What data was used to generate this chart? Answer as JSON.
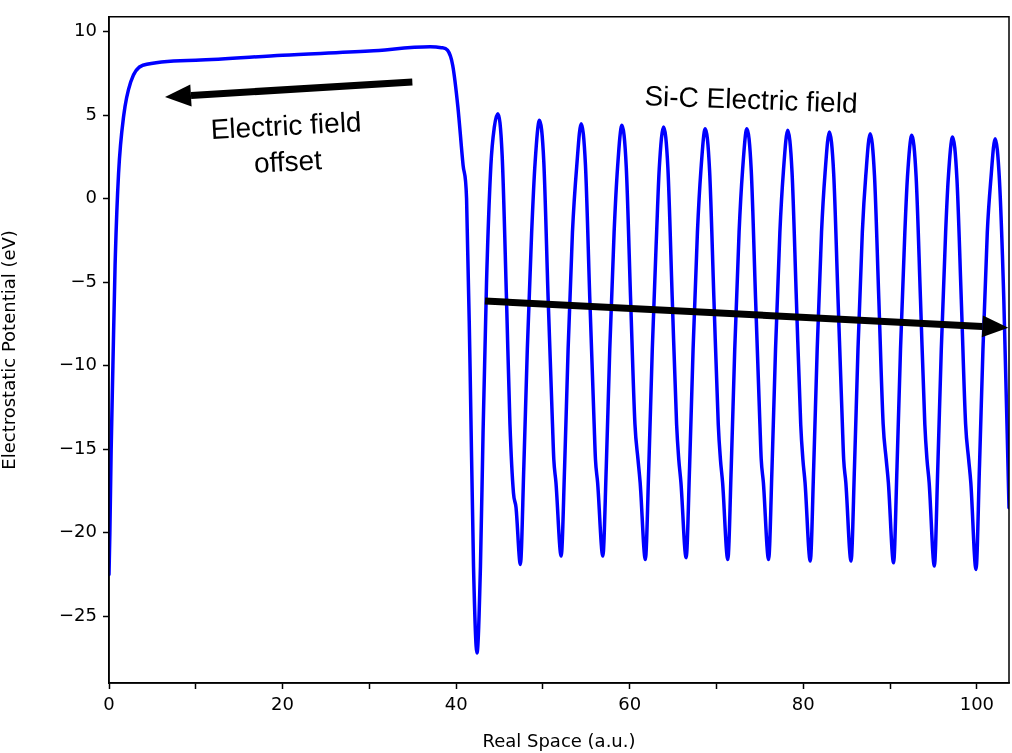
{
  "chart_data": {
    "type": "line",
    "xlabel": "Real Space (a.u.)",
    "ylabel": "Electrostatic Potential (eV)",
    "annotations": [
      "Electric field\noffset",
      "Si-C Electric field"
    ],
    "xlim": [
      0,
      103.7
    ],
    "ylim": [
      -29,
      10.9
    ],
    "xticks": [
      0,
      {
        "value": 10,
        "label": null
      },
      20,
      {
        "value": 30,
        "label": null
      },
      40,
      {
        "value": 50,
        "label": null
      },
      60,
      {
        "value": 70,
        "label": null
      },
      80,
      {
        "value": 90,
        "label": null
      },
      100
    ],
    "yticks": [
      -25,
      -20,
      -15,
      -10,
      -5,
      0,
      5,
      10
    ],
    "grid": false,
    "legend": false,
    "marker": "none",
    "line_style": "solid",
    "series": [
      {
        "color": "#0000ff",
        "x": [
          0,
          0.1,
          0.25,
          0.45,
          0.7,
          1.1,
          1.7,
          2.5,
          3.9,
          10,
          20,
          30,
          37,
          38.3,
          39.0,
          39.6,
          40.2,
          40.8,
          41.2,
          41.6,
          42.0,
          42.4,
          42.8,
          43.1,
          43.5,
          44.0,
          44.4,
          44.8,
          45.3,
          45.8,
          46.2,
          46.6,
          46.9,
          47.4,
          47.8,
          48.2,
          48.7,
          49.1,
          49.6,
          50.1,
          50.6,
          51.1,
          51.25,
          51.5,
          52.1,
          52.5,
          52.9,
          53.4,
          53.9,
          54.4,
          54.9,
          55.4,
          55.9,
          56.05,
          56.3,
          56.9,
          57.3,
          57.7,
          58.2,
          58.6,
          59.1,
          59.6,
          60.1,
          60.6,
          60.95,
          61.2,
          61.8,
          62.2,
          62.6,
          63.1,
          63.4,
          63.9,
          64.4,
          64.9,
          65.4,
          65.65,
          65.9,
          66.5,
          66.9,
          67.3,
          67.8,
          68.2,
          68.7,
          69.2,
          69.7,
          70.2,
          70.45,
          70.7,
          71.3,
          71.7,
          72.1,
          72.6,
          73.0,
          73.5,
          74.0,
          74.5,
          75.0,
          75.15,
          75.4,
          76.0,
          76.4,
          76.8,
          77.3,
          77.7,
          78.2,
          78.7,
          79.2,
          79.7,
          79.95,
          80.2,
          80.8,
          81.2,
          81.6,
          82.1,
          82.5,
          83.0,
          83.5,
          84.0,
          84.5,
          84.65,
          84.9,
          85.5,
          85.9,
          86.3,
          86.8,
          87.2,
          87.7,
          88.2,
          88.7,
          89.2,
          89.55,
          89.8,
          90.4,
          90.8,
          91.2,
          91.7,
          92.0,
          92.5,
          93.0,
          93.5,
          94.0,
          94.25,
          94.5,
          95.1,
          95.5,
          95.9,
          96.4,
          96.7,
          97.2,
          97.7,
          98.2,
          98.7,
          99.05,
          99.3,
          99.9,
          100.3,
          100.7,
          101.2,
          101.6,
          102.1,
          102.6,
          103.1,
          103.7
        ],
        "values": [
          -22.5,
          -20,
          -15,
          -10,
          -4,
          1.5,
          5,
          7,
          8,
          8.3,
          8.6,
          8.85,
          9.1,
          9.05,
          8.9,
          8,
          5.5,
          2,
          0,
          -10,
          -22,
          -27.2,
          -22,
          -14,
          -5,
          2,
          4.3,
          5.1,
          2.6,
          -6,
          -13.5,
          -17.6,
          -18.5,
          -21.9,
          -16,
          -9,
          -2,
          2.2,
          4.7,
          2.2,
          -6,
          -13.5,
          -15.6,
          -17,
          -21.4,
          -16,
          -9,
          -2,
          2,
          4.5,
          2,
          -6,
          -13.5,
          -15.6,
          -17,
          -21.4,
          -16,
          -9,
          -2,
          1.9,
          4.4,
          1.9,
          -6,
          -13.5,
          -15.6,
          -17,
          -21.6,
          -16,
          -9,
          -2,
          1.8,
          4.3,
          1.8,
          -6,
          -13.5,
          -15.6,
          -17,
          -21.5,
          -16,
          -9,
          -2,
          1.7,
          4.2,
          1.7,
          -6,
          -13.5,
          -15.6,
          -17,
          -21.6,
          -16,
          -9,
          -2,
          1.7,
          4.2,
          1.7,
          -6,
          -13.5,
          -15.6,
          -17,
          -21.6,
          -16,
          -9,
          -2,
          1.6,
          4.1,
          1.6,
          -6,
          -13.5,
          -15.6,
          -17,
          -21.7,
          -16,
          -9,
          -2,
          1.5,
          4.0,
          1.5,
          -6,
          -13.5,
          -15.6,
          -17,
          -21.7,
          -16,
          -9,
          -2,
          1.4,
          3.9,
          1.4,
          -6,
          -13.5,
          -15.6,
          -17,
          -21.8,
          -16,
          -9,
          -2,
          1.3,
          3.8,
          1.3,
          -6,
          -13.5,
          -15.6,
          -17,
          -22.0,
          -16,
          -9,
          -2,
          1.2,
          3.7,
          1.2,
          -6,
          -13.5,
          -15.6,
          -17,
          -22.2,
          -16,
          -9,
          -2,
          1.1,
          3.6,
          1.1,
          -6,
          -18.5
        ]
      }
    ]
  }
}
